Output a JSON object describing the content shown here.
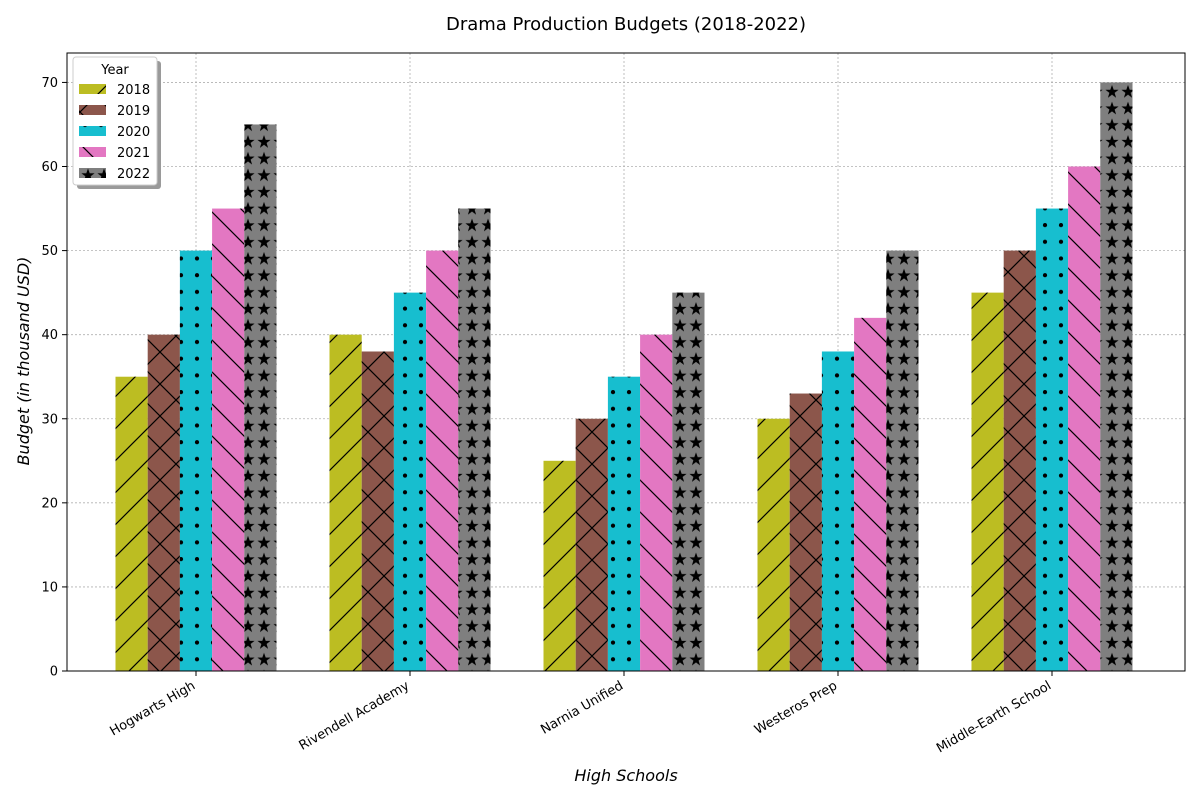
{
  "chart_data": {
    "type": "bar",
    "title": "Drama Production Budgets (2018-2022)",
    "xlabel": "High Schools",
    "ylabel": "Budget (in thousand USD)",
    "categories": [
      "Hogwarts High",
      "Rivendell Academy",
      "Narnia Unified",
      "Westeros Prep",
      "Middle-Earth School"
    ],
    "series": [
      {
        "name": "2018",
        "values": [
          35,
          40,
          25,
          30,
          45
        ],
        "color": "#bcbd22",
        "pattern": "diagonal-forward"
      },
      {
        "name": "2019",
        "values": [
          40,
          38,
          30,
          33,
          50
        ],
        "color": "#8c564b",
        "pattern": "crosshatch"
      },
      {
        "name": "2020",
        "values": [
          50,
          45,
          35,
          38,
          55
        ],
        "color": "#17becf",
        "pattern": "dots"
      },
      {
        "name": "2021",
        "values": [
          55,
          50,
          40,
          42,
          60
        ],
        "color": "#e377c2",
        "pattern": "diagonal-back"
      },
      {
        "name": "2022",
        "values": [
          65,
          55,
          45,
          50,
          70
        ],
        "color": "#7f7f7f",
        "pattern": "stars"
      }
    ],
    "ylim": [
      0,
      73.5
    ],
    "yticks": [
      0,
      10,
      20,
      30,
      40,
      50,
      60,
      70
    ],
    "legend_title": "Year",
    "legend_position": "top-left",
    "grid": true
  }
}
